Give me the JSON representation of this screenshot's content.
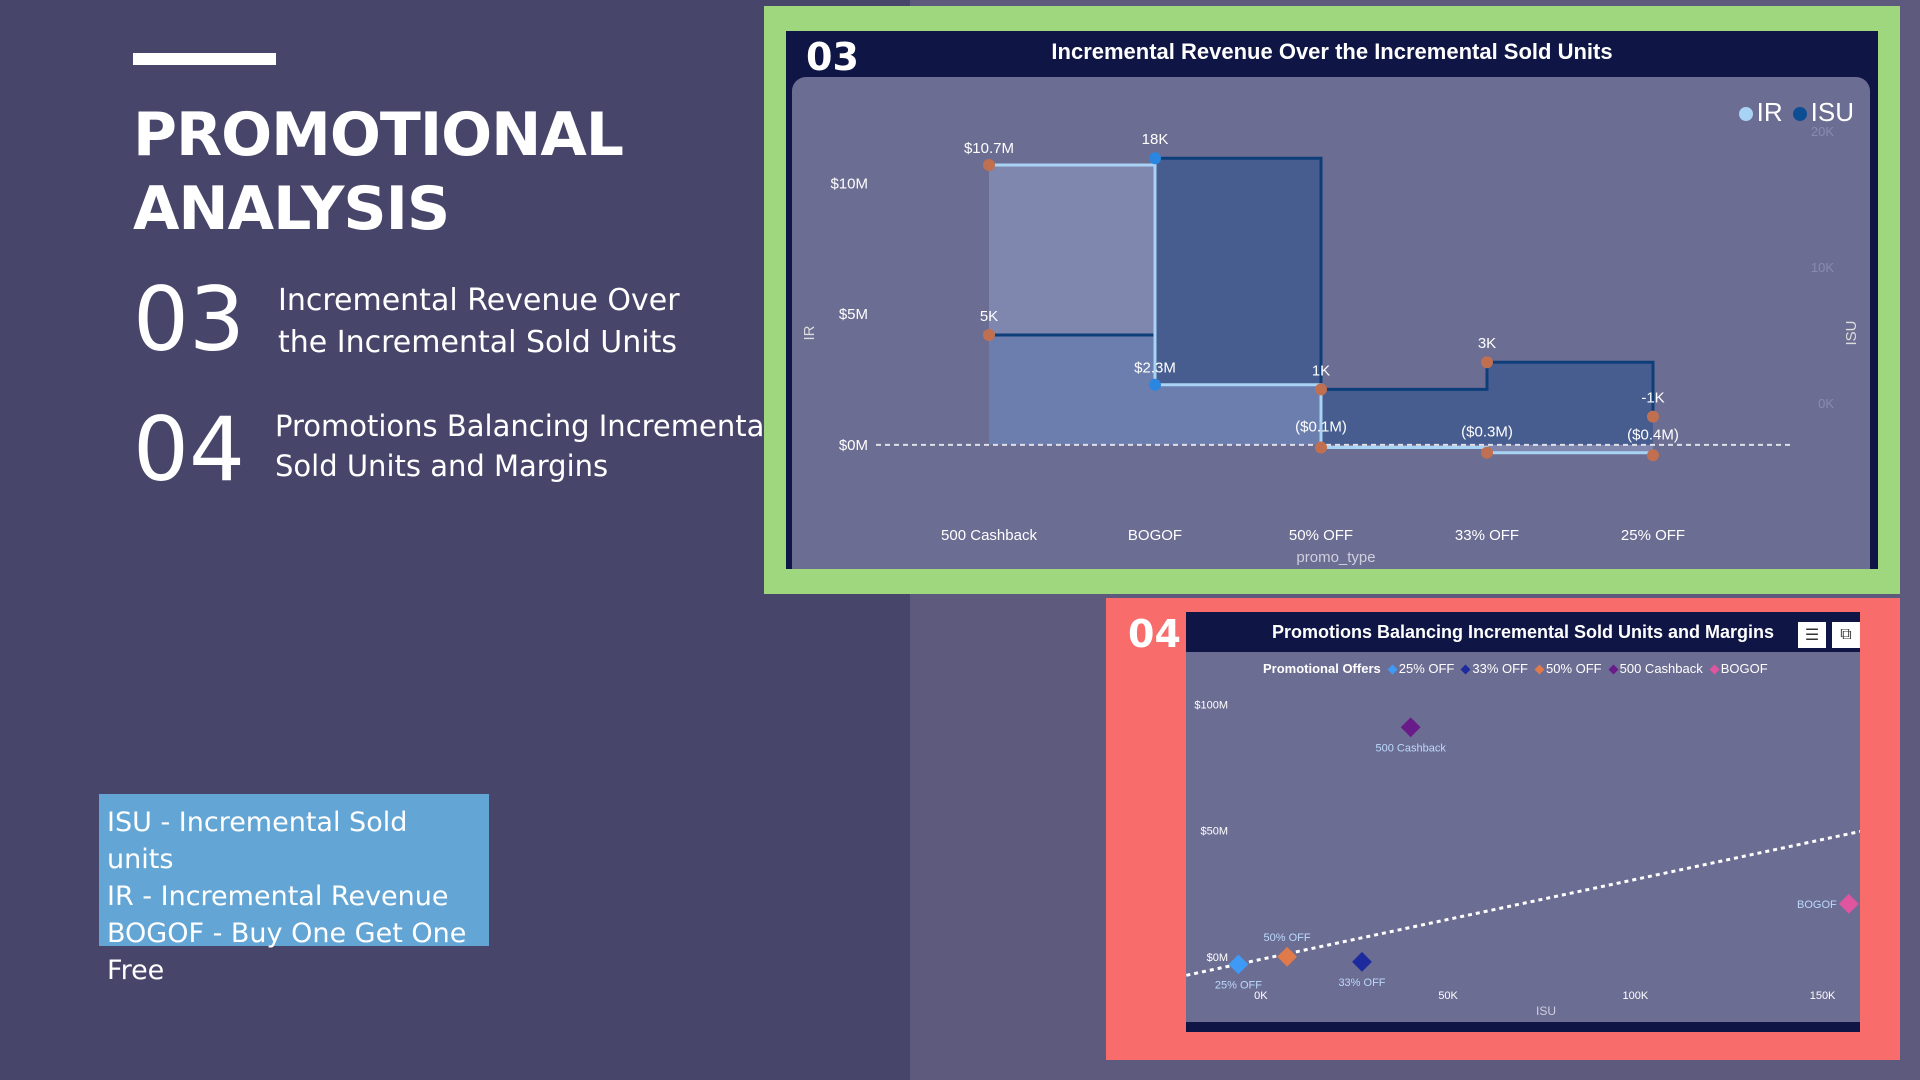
{
  "slide": {
    "title_line1": "PROMOTIONAL",
    "title_line2": "ANALYSIS",
    "items": [
      {
        "number": "03",
        "line1": "Incremental Revenue Over",
        "line2": "the Incremental Sold Units"
      },
      {
        "number": "04",
        "line1": "Promotions Balancing Incremental",
        "line2": "Sold Units and Margins"
      }
    ],
    "glossary": [
      "ISU - Incremental Sold units",
      "IR - Incremental Revenue",
      "BOGOF - Buy One Get One Free"
    ]
  },
  "colors": {
    "background": "#48456a",
    "panel03_frame": "#9ed77e",
    "panel04_frame": "#f86c6c",
    "glossary_bg": "#63a6d6",
    "ir": "#a9d3f5",
    "isu": "#0d4d94"
  },
  "panel03": {
    "badge": "03",
    "title": "Incremental Revenue Over the Incremental Sold Units",
    "legend": [
      {
        "label": "IR",
        "color": "#a9d3f5"
      },
      {
        "label": "ISU",
        "color": "#0d4d94"
      }
    ],
    "chart_data": {
      "type": "line",
      "subtype": "stepped",
      "title": "Incremental Revenue Over the Incremental Sold Units",
      "xlabel": "promo_type",
      "ylabel_left": "IR",
      "ylabel_right": "ISU",
      "categories": [
        "500 Cashback",
        "BOGOF",
        "50% OFF",
        "33% OFF",
        "25% OFF"
      ],
      "y_ticks_left": [
        "$0M",
        "$5M",
        "$10M"
      ],
      "y_ticks_right": [
        "0K",
        "10K",
        "20K"
      ],
      "ylim_left": [
        -1,
        12
      ],
      "ylim_right": [
        -5,
        20
      ],
      "series": [
        {
          "name": "IR",
          "axis": "left",
          "values": [
            10.7,
            2.3,
            -0.1,
            -0.3,
            -0.4
          ],
          "labels": [
            "$10.7M",
            "$2.3M",
            "($0.1M)",
            "($0.3M)",
            "($0.4M)"
          ]
        },
        {
          "name": "ISU",
          "axis": "right",
          "values": [
            5,
            18,
            1,
            3,
            -1
          ],
          "labels": [
            "5K",
            "18K",
            "1K",
            "3K",
            "-1K"
          ]
        }
      ]
    }
  },
  "panel04": {
    "badge": "04",
    "title": "Promotions Balancing Incremental Sold Units and Margins",
    "icons": [
      "filter-icon",
      "focus-mode-icon"
    ],
    "legend_title": "Promotional Offers",
    "legend": [
      {
        "label": "25% OFF",
        "color": "#3f9af5"
      },
      {
        "label": "33% OFF",
        "color": "#1d2a9e"
      },
      {
        "label": "50% OFF",
        "color": "#e07a4a"
      },
      {
        "label": "500 Cashback",
        "color": "#6a1b8a"
      },
      {
        "label": "BOGOF",
        "color": "#e0559f"
      }
    ],
    "chart_data": {
      "type": "scatter",
      "title": "Promotions Balancing Incremental Sold Units and Margins",
      "xlabel": "ISU",
      "ylabel": "",
      "x_ticks": [
        "0K",
        "50K",
        "100K",
        "150K"
      ],
      "y_ticks": [
        "$0M",
        "$50M",
        "$100M"
      ],
      "xlim": [
        -20,
        160
      ],
      "ylim": [
        -10,
        105
      ],
      "trendline": true,
      "points": [
        {
          "name": "500 Cashback",
          "x": 40,
          "y": 91,
          "color": "#6a1b8a"
        },
        {
          "name": "BOGOF",
          "x": 157,
          "y": 21,
          "color": "#e0559f"
        },
        {
          "name": "50% OFF",
          "x": 7,
          "y": 0,
          "color": "#e07a4a"
        },
        {
          "name": "33% OFF",
          "x": 27,
          "y": -2,
          "color": "#1d2a9e"
        },
        {
          "name": "25% OFF",
          "x": -6,
          "y": -3,
          "color": "#3f9af5"
        }
      ]
    }
  }
}
